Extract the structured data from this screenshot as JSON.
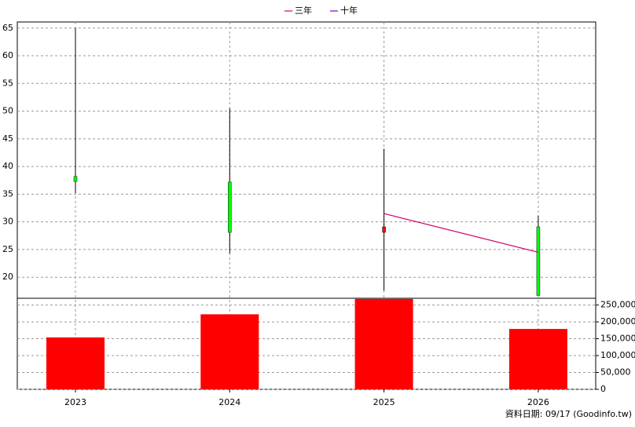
{
  "chart_data": {
    "type": "candlestick",
    "categories": [
      "2023",
      "2024",
      "2025",
      "2026"
    ],
    "open": [
      38.2,
      37.2,
      28.1,
      29.1
    ],
    "high": [
      65,
      50.5,
      43.2,
      31.1
    ],
    "low": [
      35.2,
      24.3,
      17.6,
      16.7
    ],
    "close": [
      37.3,
      28.1,
      29.1,
      16.7
    ],
    "up_color": "#ff0000",
    "down_color": "#00ff00",
    "series": [
      {
        "name": "三年",
        "color": "#d4006a",
        "values": [
          null,
          null,
          31.5,
          24.5
        ]
      },
      {
        "name": "十年",
        "color": "#8000c0",
        "values": [
          null,
          null,
          null,
          null
        ]
      }
    ],
    "ylim": [
      16.2,
      66.1
    ],
    "yticks": [
      20,
      25,
      30,
      35,
      40,
      45,
      50,
      55,
      60,
      65
    ],
    "volume": {
      "values": [
        154000,
        222500,
        268000,
        179000
      ],
      "color": "#ff0000",
      "axis": "y2"
    },
    "y2lim": [
      0,
      270000
    ],
    "y2ticks": [
      0,
      {
        "value": 50000,
        "label": "50,000"
      },
      {
        "value": 100000,
        "label": "100,000"
      },
      {
        "value": 150000,
        "label": "150,000"
      },
      {
        "value": 200000,
        "label": "200,000"
      },
      {
        "value": 250000,
        "label": "250,000"
      }
    ],
    "grid": true,
    "legend": "top",
    "footer": "資料日期: 09/17  (Goodinfo.tw)"
  }
}
